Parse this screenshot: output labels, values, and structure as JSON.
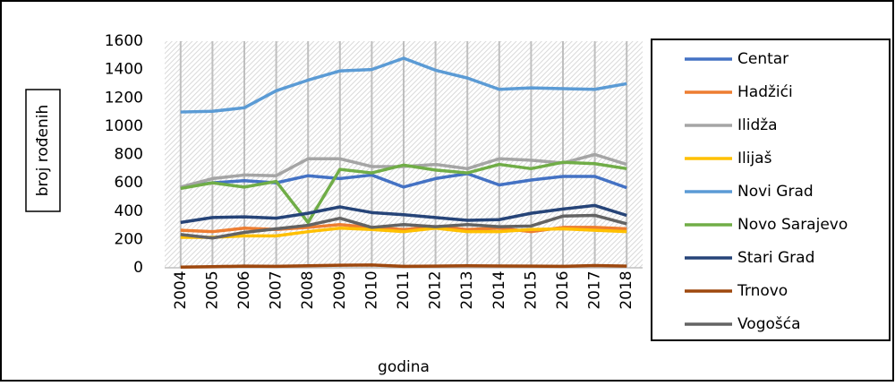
{
  "chart_data": {
    "type": "line",
    "x_label": "godina",
    "y_label": "broj rođenih",
    "categories": [
      "2004",
      "2005",
      "2006",
      "2007",
      "2008",
      "2009",
      "2010",
      "2011",
      "2012",
      "2013",
      "2014",
      "2015",
      "2016",
      "2017",
      "2018"
    ],
    "ylim": [
      0,
      1600
    ],
    "yticks": [
      0,
      200,
      400,
      600,
      800,
      1000,
      1200,
      1400,
      1600
    ],
    "legend": "right",
    "series": [
      {
        "name": "Centar",
        "color": "#4472c4",
        "values": [
          570,
          600,
          615,
          600,
          650,
          630,
          655,
          570,
          630,
          665,
          585,
          620,
          645,
          645,
          565
        ]
      },
      {
        "name": "Hadžići",
        "color": "#ed7d31",
        "values": [
          265,
          255,
          280,
          270,
          285,
          305,
          285,
          270,
          290,
          270,
          280,
          255,
          285,
          285,
          275
        ]
      },
      {
        "name": "Ilidža",
        "color": "#a5a5a5",
        "values": [
          570,
          630,
          655,
          650,
          770,
          770,
          715,
          715,
          730,
          700,
          770,
          760,
          740,
          800,
          730
        ]
      },
      {
        "name": "Ilijaš",
        "color": "#ffc000",
        "values": [
          215,
          215,
          225,
          225,
          255,
          280,
          270,
          255,
          280,
          255,
          255,
          270,
          275,
          265,
          255
        ]
      },
      {
        "name": "Novi Grad",
        "color": "#5b9bd5",
        "values": [
          1100,
          1105,
          1130,
          1250,
          1325,
          1390,
          1400,
          1480,
          1395,
          1340,
          1260,
          1270,
          1265,
          1260,
          1300
        ]
      },
      {
        "name": "Novo Sarajevo",
        "color": "#70ad47",
        "values": [
          560,
          600,
          570,
          610,
          320,
          695,
          670,
          725,
          690,
          670,
          730,
          700,
          745,
          735,
          700
        ]
      },
      {
        "name": "Stari Grad",
        "color": "#264478",
        "values": [
          320,
          355,
          360,
          350,
          385,
          430,
          390,
          375,
          355,
          335,
          340,
          385,
          415,
          440,
          370
        ]
      },
      {
        "name": "Trnovo",
        "color": "#9e480e",
        "values": [
          5,
          8,
          12,
          10,
          14,
          18,
          20,
          10,
          12,
          14,
          13,
          12,
          10,
          16,
          12
        ]
      },
      {
        "name": "Vogošća",
        "color": "#636363",
        "values": [
          235,
          210,
          250,
          275,
          300,
          350,
          285,
          305,
          290,
          305,
          290,
          295,
          365,
          370,
          310
        ]
      }
    ]
  }
}
